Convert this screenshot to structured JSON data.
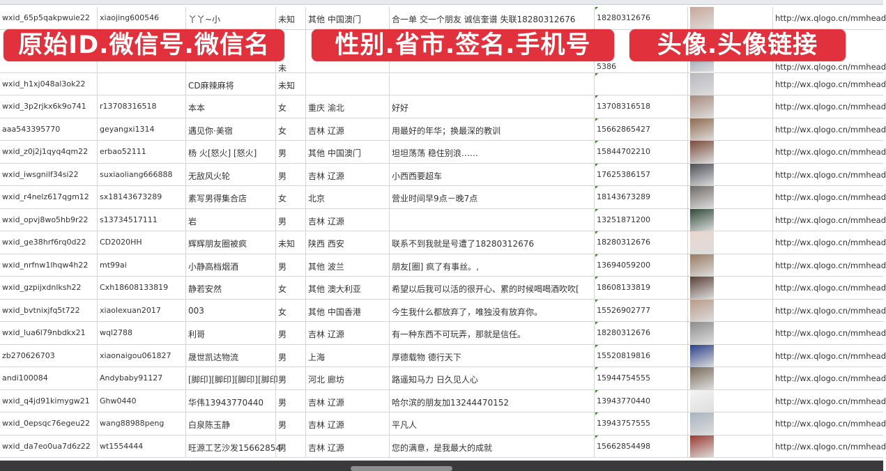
{
  "overlay_labels": [
    "原始ID.微信号.微信名",
    "性别.省市.签名.手机号",
    "头像.头像链接"
  ],
  "colors": {
    "overlay": "#e0313d",
    "grid_line": "#d4d4d4",
    "bottom_bar": "#3a3a3c"
  },
  "rows": [
    {
      "id": "wxid_65p5qakpwuie22",
      "wechat": "xiaojing600546",
      "name": "丫丫~小",
      "gender": "未知",
      "region": "其他 中国澳门",
      "signature": "合一单 交一个朋友 诚信奎谱 失联18280312676",
      "phone": "18280312676",
      "avatar": "#c9a79a",
      "url": "http://wx.qlogo.cn/mmhead"
    },
    {
      "id": "",
      "wechat": "",
      "name": "",
      "gender": "未",
      "region": "",
      "signature": "",
      "phone": "5386",
      "avatar": "#5b6b8c",
      "url": "http://wx.qlogo.cn/mmhead"
    },
    {
      "id": "wxid_h1xj048al3ok22",
      "wechat": "",
      "name": "CD麻辣麻将",
      "gender": "未知",
      "region": "",
      "signature": "",
      "phone": "",
      "avatar": "#b8b8c0",
      "url": "http://wx.qlogo.cn/mmhead"
    },
    {
      "id": "wxid_3p2rjkx6k9o741",
      "wechat": "r13708316518",
      "name": "本本",
      "gender": "女",
      "region": "重庆 渝北",
      "signature": "好好",
      "phone": "13708316518",
      "avatar": "#a88a7c",
      "url": "http://wx.qlogo.cn/mmhead"
    },
    {
      "id": "aaa543395770",
      "wechat": "geyangxi1314",
      "name": "遇见你·美宿",
      "gender": "女",
      "region": "吉林 辽源",
      "signature": "用最好的年华；换最深的教训",
      "phone": "15662865427",
      "avatar": "#8f6a4e",
      "url": "http://wx.qlogo.cn/mmhead"
    },
    {
      "id": "wxid_z0j2j1qyq4qm22",
      "wechat": "erbao52111",
      "name": "杨 火[怒火] [怒火]",
      "gender": "男",
      "region": "其他 中国澳门",
      "signature": "坦坦荡荡 稳住别浪……",
      "phone": "15844702210",
      "avatar": "#7a4a3a",
      "url": "http://wx.qlogo.cn/mmhead"
    },
    {
      "id": "wxid_iwsgnilf34si22",
      "wechat": "suxiaoliang666888",
      "name": "无敌风火轮",
      "gender": "男",
      "region": "吉林 辽源",
      "signature": "小西西要超车",
      "phone": "17625386157",
      "avatar": "#4d4f57",
      "url": "http://wx.qlogo.cn/mmhead"
    },
    {
      "id": "wxid_r4nelz617qgm12",
      "wechat": "sx18143673289",
      "name": "素写男得集合店",
      "gender": "女",
      "region": "北京",
      "signature": "营业时间早9点－晚7点",
      "phone": "18143673289",
      "avatar": "#6f6a66",
      "url": "http://wx.qlogo.cn/mmhead"
    },
    {
      "id": "wxid_opvj8wo5hb9r22",
      "wechat": "s13734517111",
      "name": "岩",
      "gender": "男",
      "region": "吉林 辽源",
      "signature": "",
      "phone": "13251871200",
      "avatar": "#2f4a3a",
      "url": "http://wx.qlogo.cn/mmhead"
    },
    {
      "id": "wxid_ge38hrf6rq0d22",
      "wechat": "CD2020HH",
      "name": "辉辉朋友圈被疯",
      "gender": "未知",
      "region": "陕西 西安",
      "signature": "联系不到我就是号遭了18280312676",
      "phone": "18280312676",
      "avatar": "#e9d6cc",
      "url": "http://wx.qlogo.cn/mmhead"
    },
    {
      "id": "wxid_nrfnw1lhqw4h22",
      "wechat": "mt99ai",
      "name": "小静高档烟酒",
      "gender": "男",
      "region": "其他 波兰",
      "signature": "朋友[圈] 疯了有事丝。,",
      "phone": "13694059200",
      "avatar": "#9a7b62",
      "url": "http://wx.qlogo.cn/mmhead"
    },
    {
      "id": "wxid_gzpijxdnlksh22",
      "wechat": "Cxh18608133819",
      "name": "静若安然",
      "gender": "女",
      "region": "其他 澳大利亚",
      "signature": "希望以后我可以活的很开心、累的时候喝喝酒吹吹[",
      "phone": "18608133819",
      "avatar": "#5a3f36",
      "url": "http://wx.qlogo.cn/mmhead"
    },
    {
      "id": "wxid_bvtnixjfq5t722",
      "wechat": "xiaolexuan2017",
      "name": "003",
      "gender": "女",
      "region": "其他 中国香港",
      "signature": "今生我什么都放弃了，唯独没有放弃你。",
      "phone": "15526902777",
      "avatar": "#b99a8a",
      "url": "http://wx.qlogo.cn/mmhead"
    },
    {
      "id": "wxid_lua6l79nbdkx21",
      "wechat": "wql2788",
      "name": "利哥",
      "gender": "男",
      "region": "吉林 辽源",
      "signature": "有一种东西不可玩弄，那就是信任。",
      "phone": "18280312676",
      "avatar": "#8c8c8c",
      "url": "http://wx.qlogo.cn/mmhead"
    },
    {
      "id": "zb270626703",
      "wechat": "xiaonaigou061827",
      "name": "晟世凯达物流",
      "gender": "男",
      "region": "上海",
      "signature": "厚德载物 德行天下",
      "phone": "15520819816",
      "avatar": "#2a3f8a",
      "url": "http://wx.qlogo.cn/mmhead"
    },
    {
      "id": "andi100084",
      "wechat": "Andybaby91127",
      "name": "[脚印][脚印][脚印][脚印",
      "gender": "男",
      "region": "河北 廊坊",
      "signature": "路遥知马力 日久见人心",
      "phone": "15944754555",
      "avatar": "#7a6b5a",
      "url": "http://wx.qlogo.cn/mmhead"
    },
    {
      "id": "wxid_q4jd91kimygw21",
      "wechat": "Ghw0440",
      "name": "华伟13943770440",
      "gender": "男",
      "region": "吉林 辽源",
      "signature": "哈尔滨的朋友加13244470152",
      "phone": "13943770440",
      "avatar": "#f4f4f4",
      "url": "http://wx.qlogo.cn/mmhead"
    },
    {
      "id": "wxid_0epsqc76egeu22",
      "wechat": "wang88988peng",
      "name": "白泉陈玉静",
      "gender": "男",
      "region": "吉林 辽源",
      "signature": "平凡人",
      "phone": "13943757555",
      "avatar": "#a9b3bf",
      "url": "http://wx.qlogo.cn/mmhead"
    },
    {
      "id": "wxid_da7eo0ua7d6z22",
      "wechat": "wt1554444",
      "name": "旺源工艺沙发15662854",
      "gender": "男",
      "region": "吉林 辽源",
      "signature": "您的满意，是我最大的成就",
      "phone": "15662854498",
      "avatar": "#9b3a30",
      "url": "http://wx.qlogo.cn/mmhead"
    }
  ]
}
